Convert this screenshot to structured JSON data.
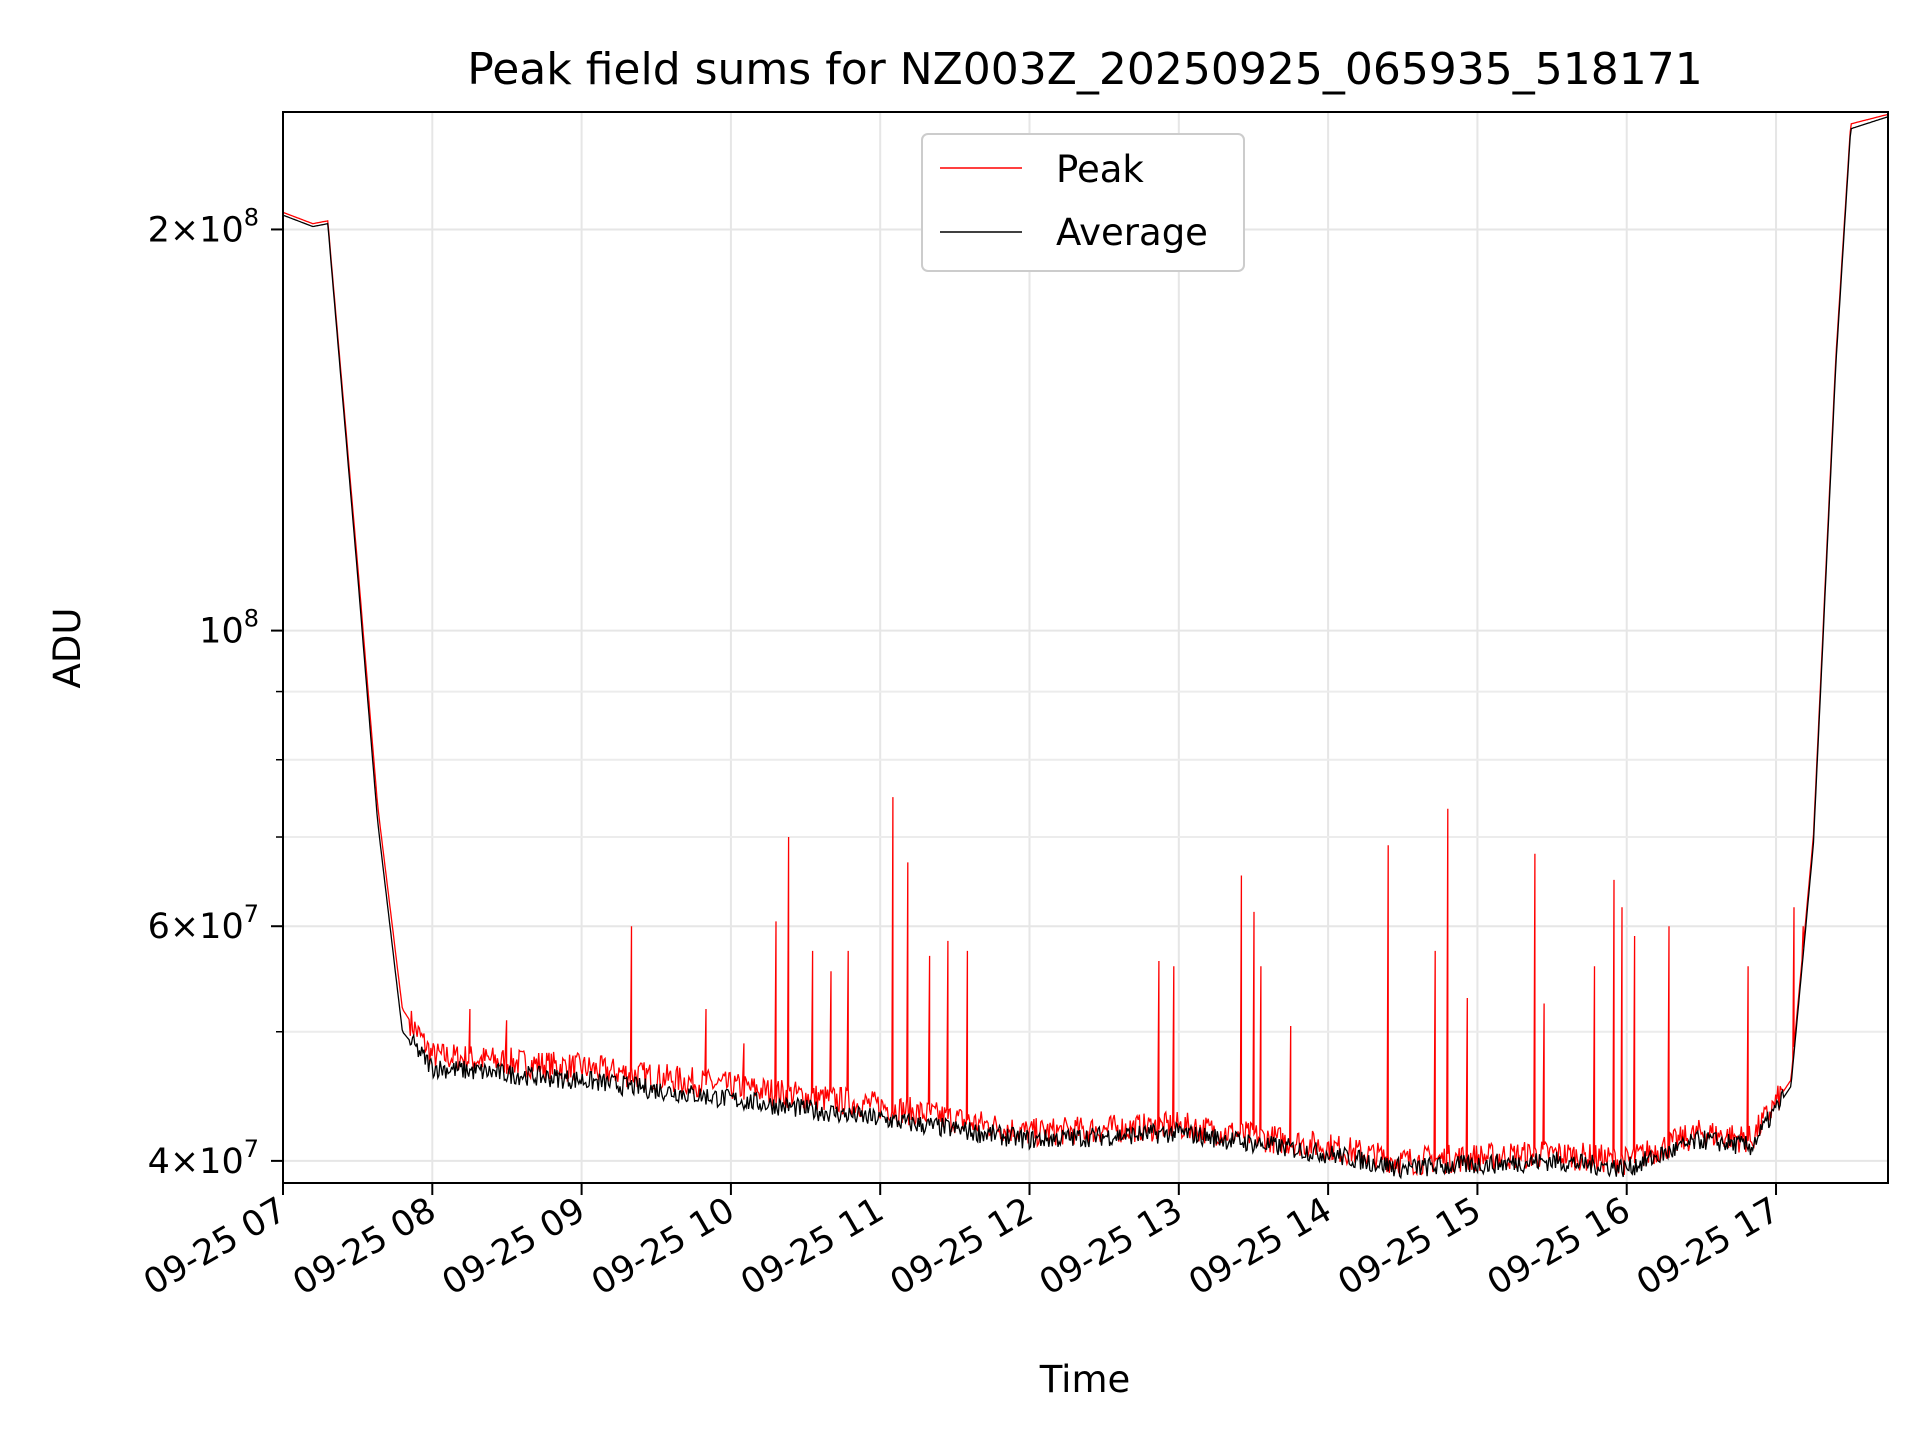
{
  "chart_data": {
    "type": "line",
    "title": "Peak field sums for NZ003Z_20250925_065935_518171",
    "xlabel": "Time",
    "ylabel": "ADU",
    "yscale": "log",
    "x_units": "hours since 09-25 07:00",
    "xlim": [
      "09-25 07:00",
      "09-25 17:45"
    ],
    "ylim": [
      38500000,
      245000000
    ],
    "xticks": [
      "09-25 07",
      "09-25 08",
      "09-25 09",
      "09-25 10",
      "09-25 11",
      "09-25 12",
      "09-25 13",
      "09-25 14",
      "09-25 15",
      "09-25 16",
      "09-25 17"
    ],
    "yticks": [
      {
        "value": 40000000,
        "base": "4×10",
        "exp": "7"
      },
      {
        "value": 60000000,
        "base": "6×10",
        "exp": "7"
      },
      {
        "value": 100000000,
        "base": "10",
        "exp": "8"
      },
      {
        "value": 200000000,
        "base": "2×10",
        "exp": "8"
      }
    ],
    "grid": true,
    "legend": "top-center",
    "series": [
      {
        "name": "Peak",
        "color": "#ff0000",
        "baseline_points": [
          [
            "09-25 07:00",
            206000000
          ],
          [
            "09-25 07:12",
            202000000
          ],
          [
            "09-25 07:18",
            203000000
          ],
          [
            "09-25 07:30",
            112000000
          ],
          [
            "09-25 07:38",
            74000000
          ],
          [
            "09-25 07:48",
            52000000
          ],
          [
            "09-25 08:00",
            48000000
          ],
          [
            "09-25 09:00",
            47000000
          ],
          [
            "09-25 10:00",
            45500000
          ],
          [
            "09-25 11:00",
            44000000
          ],
          [
            "09-25 12:00",
            42000000
          ],
          [
            "09-25 13:00",
            42500000
          ],
          [
            "09-25 14:00",
            41000000
          ],
          [
            "09-25 14:30",
            40000000
          ],
          [
            "09-25 15:30",
            40500000
          ],
          [
            "09-25 16:00",
            40000000
          ],
          [
            "09-25 16:30",
            42000000
          ],
          [
            "09-25 16:50",
            41500000
          ],
          [
            "09-25 17:06",
            46000000
          ],
          [
            "09-25 17:15",
            70000000
          ],
          [
            "09-25 17:24",
            160000000
          ],
          [
            "09-25 17:30",
            240000000
          ],
          [
            "09-25 17:45",
            244000000
          ]
        ],
        "spikes": [
          [
            "09-25 08:15",
            52000000
          ],
          [
            "09-25 08:30",
            51000000
          ],
          [
            "09-25 09:20",
            60000000
          ],
          [
            "09-25 09:50",
            52000000
          ],
          [
            "09-25 10:05",
            49000000
          ],
          [
            "09-25 10:18",
            60500000
          ],
          [
            "09-25 10:23",
            70000000
          ],
          [
            "09-25 10:33",
            57500000
          ],
          [
            "09-25 10:40",
            55500000
          ],
          [
            "09-25 10:47",
            57500000
          ],
          [
            "09-25 11:05",
            75000000
          ],
          [
            "09-25 11:11",
            67000000
          ],
          [
            "09-25 11:20",
            57000000
          ],
          [
            "09-25 11:27",
            58500000
          ],
          [
            "09-25 11:35",
            57500000
          ],
          [
            "09-25 12:52",
            56500000
          ],
          [
            "09-25 12:58",
            56000000
          ],
          [
            "09-25 13:25",
            65500000
          ],
          [
            "09-25 13:30",
            61500000
          ],
          [
            "09-25 13:33",
            56000000
          ],
          [
            "09-25 13:45",
            50500000
          ],
          [
            "09-25 14:24",
            69000000
          ],
          [
            "09-25 14:43",
            57500000
          ],
          [
            "09-25 14:48",
            73500000
          ],
          [
            "09-25 14:56",
            53000000
          ],
          [
            "09-25 15:23",
            68000000
          ],
          [
            "09-25 15:27",
            52500000
          ],
          [
            "09-25 15:47",
            56000000
          ],
          [
            "09-25 15:55",
            65000000
          ],
          [
            "09-25 15:58",
            62000000
          ],
          [
            "09-25 16:03",
            59000000
          ],
          [
            "09-25 16:17",
            60000000
          ],
          [
            "09-25 16:49",
            56000000
          ],
          [
            "09-25 17:07",
            62000000
          ],
          [
            "09-25 17:11",
            60000000
          ]
        ]
      },
      {
        "name": "Average",
        "color": "#000000",
        "baseline_points": [
          [
            "09-25 07:00",
            205000000
          ],
          [
            "09-25 07:12",
            201000000
          ],
          [
            "09-25 07:18",
            202000000
          ],
          [
            "09-25 07:30",
            110000000
          ],
          [
            "09-25 07:38",
            72000000
          ],
          [
            "09-25 07:48",
            50000000
          ],
          [
            "09-25 08:00",
            47000000
          ],
          [
            "09-25 09:00",
            46000000
          ],
          [
            "09-25 10:00",
            44500000
          ],
          [
            "09-25 11:00",
            43000000
          ],
          [
            "09-25 12:00",
            41500000
          ],
          [
            "09-25 13:00",
            42000000
          ],
          [
            "09-25 14:00",
            40500000
          ],
          [
            "09-25 14:30",
            39500000
          ],
          [
            "09-25 15:30",
            40000000
          ],
          [
            "09-25 16:00",
            39500000
          ],
          [
            "09-25 16:30",
            41500000
          ],
          [
            "09-25 16:50",
            41000000
          ],
          [
            "09-25 17:06",
            45500000
          ],
          [
            "09-25 17:15",
            69000000
          ],
          [
            "09-25 17:24",
            158000000
          ],
          [
            "09-25 17:30",
            238000000
          ],
          [
            "09-25 17:45",
            243000000
          ]
        ]
      }
    ]
  }
}
